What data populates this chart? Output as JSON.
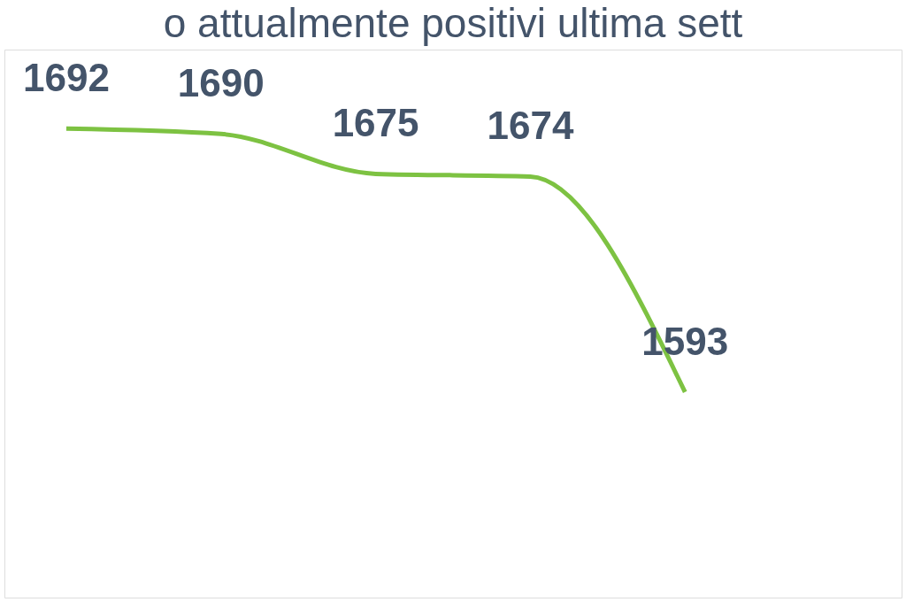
{
  "chart_data": {
    "type": "line",
    "title": "o attualmente positivi ultima sett",
    "categories": [
      null,
      null,
      null,
      null,
      null,
      null
    ],
    "series": [
      {
        "color": "#7dc242",
        "values": [
          1692,
          1690,
          1675,
          1674,
          1593,
          null
        ]
      }
    ],
    "data_labels": true,
    "marker": "none",
    "line_style": "solid",
    "grid": false
  }
}
